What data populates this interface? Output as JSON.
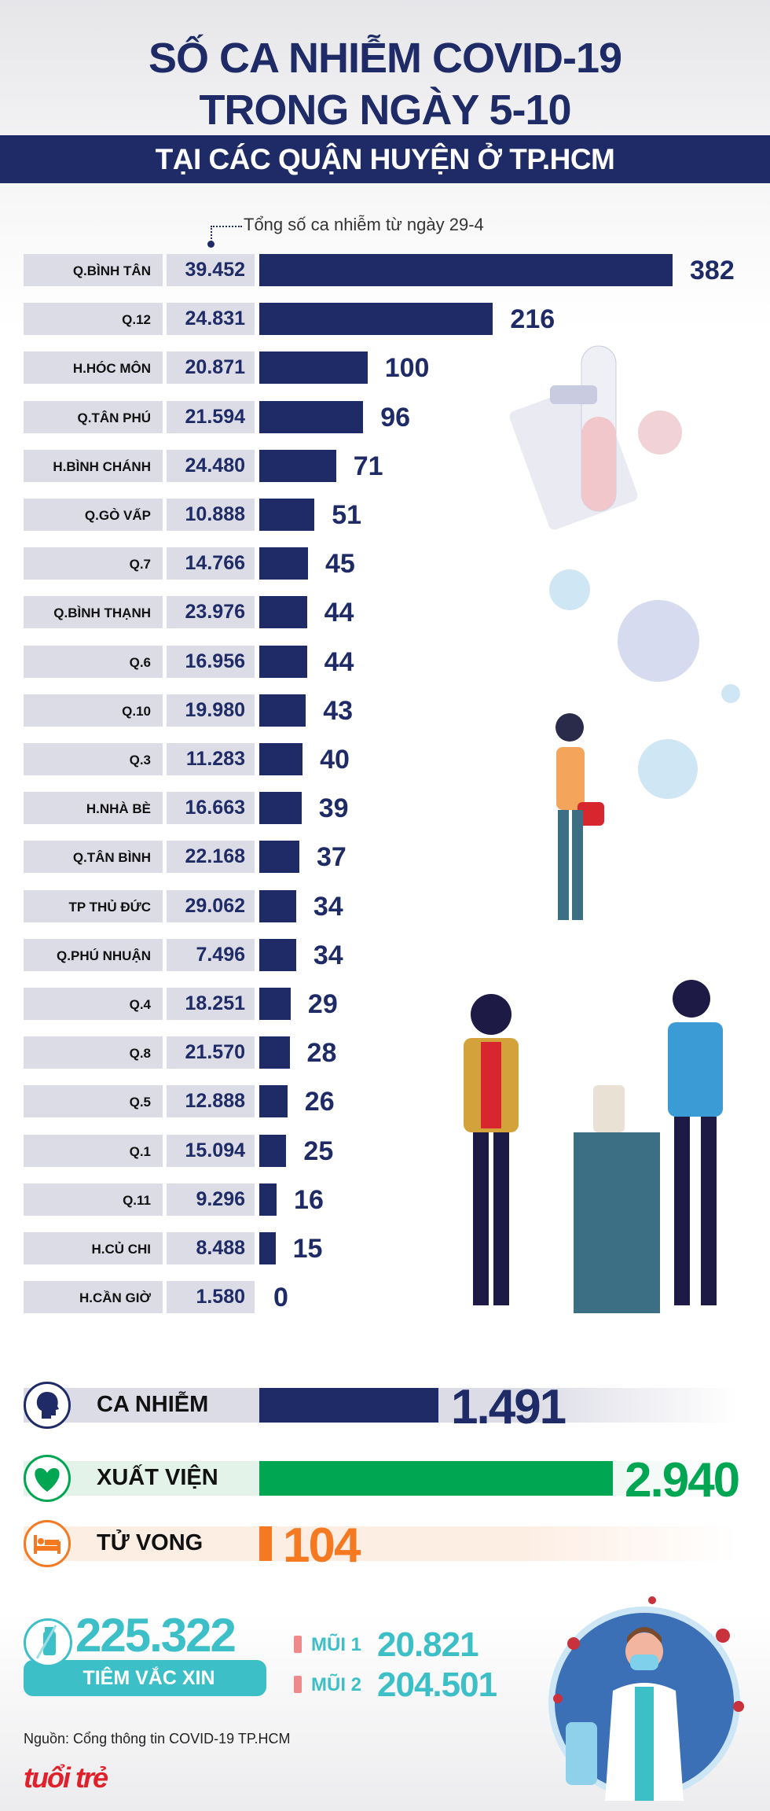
{
  "header": {
    "title_line1": "SỐ CA NHIỄM COVID-19",
    "title_line2": "TRONG NGÀY 5-10",
    "subtitle": "TẠI CÁC QUẬN HUYỆN Ở TP.HCM"
  },
  "chart_data": {
    "type": "bar",
    "title": "Số ca nhiễm COVID-19 trong ngày 5-10 tại các quận huyện ở TP.HCM",
    "total_note": "Tổng số ca nhiễm từ ngày 29-4",
    "categories": [
      "Q.BÌNH TÂN",
      "Q.12",
      "H.HÓC MÔN",
      "Q.TÂN PHÚ",
      "H.BÌNH CHÁNH",
      "Q.GÒ VẤP",
      "Q.7",
      "Q.BÌNH THẠNH",
      "Q.6",
      "Q.10",
      "Q.3",
      "H.NHÀ BÈ",
      "Q.TÂN BÌNH",
      "TP THỦ ĐỨC",
      "Q.PHÚ NHUẬN",
      "Q.4",
      "Q.8",
      "Q.5",
      "Q.1",
      "Q.11",
      "H.CỦ CHI",
      "H.CẦN GIỜ"
    ],
    "totals": [
      "39.452",
      "24.831",
      "20.871",
      "21.594",
      "24.480",
      "10.888",
      "14.766",
      "23.976",
      "16.956",
      "19.980",
      "11.283",
      "16.663",
      "22.168",
      "29.062",
      "7.496",
      "18.251",
      "21.570",
      "12.888",
      "15.094",
      "9.296",
      "8.488",
      "1.580"
    ],
    "values": [
      382,
      216,
      100,
      96,
      71,
      51,
      45,
      44,
      44,
      43,
      40,
      39,
      37,
      34,
      34,
      29,
      28,
      26,
      25,
      16,
      15,
      0
    ],
    "xlim": [
      0,
      382
    ],
    "bar_color": "#1e2b66"
  },
  "summary": {
    "cases": {
      "label": "CA NHIỄM",
      "value": "1.491",
      "number": 1491,
      "color": "#1e2b66"
    },
    "recovered": {
      "label": "XUẤT VIỆN",
      "value": "2.940",
      "number": 2940,
      "color": "#00a651"
    },
    "deaths": {
      "label": "TỬ VONG",
      "value": "104",
      "number": 104,
      "color": "#f47920"
    }
  },
  "vaccine": {
    "total": "225.322",
    "label": "TIÊM VẮC XIN",
    "dose1_label": "MŨI 1",
    "dose1_value": "20.821",
    "dose2_label": "MŨI 2",
    "dose2_value": "204.501",
    "color": "#3dbfc8"
  },
  "footer": {
    "source": "Nguồn: Cổng thông tin COVID-19 TP.HCM",
    "logo": "tuổi trẻ online"
  }
}
